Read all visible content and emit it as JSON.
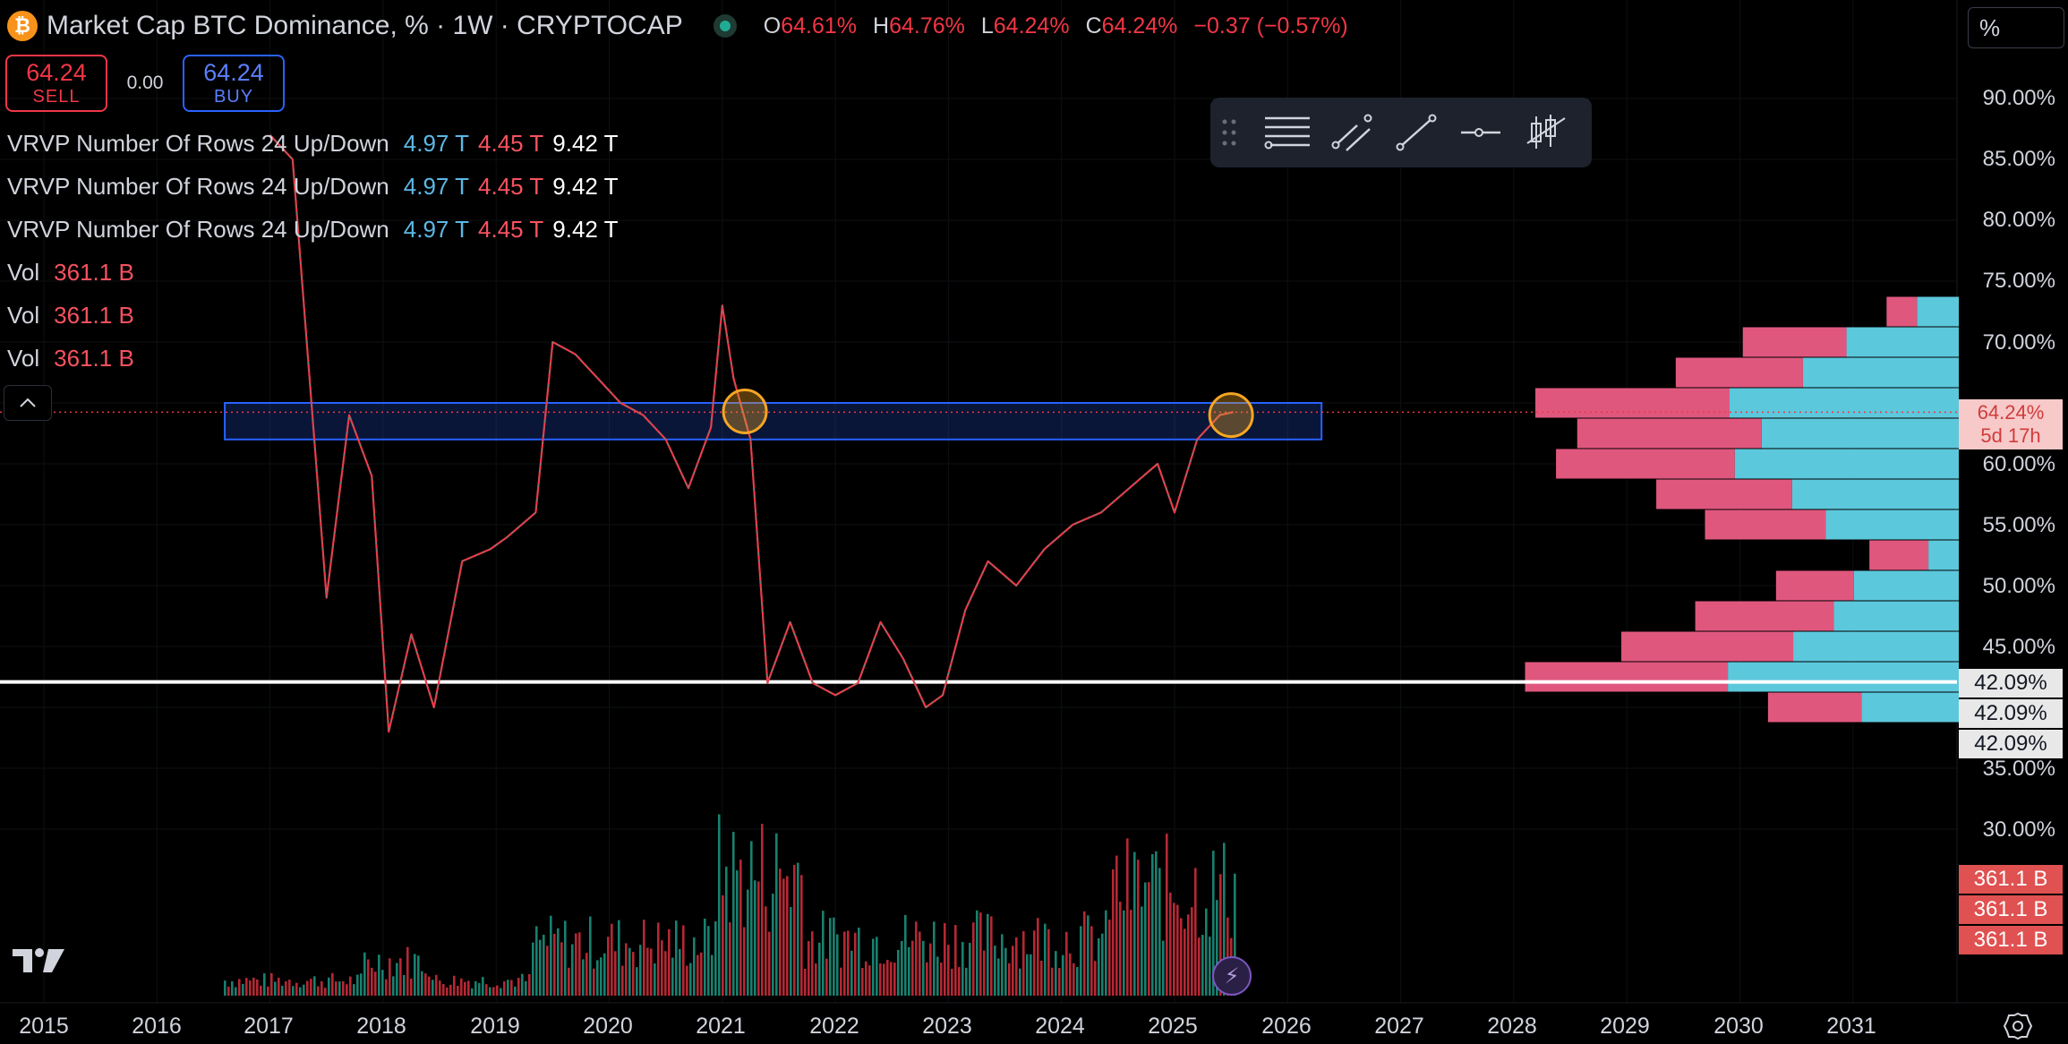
{
  "header": {
    "title": "Market Cap BTC Dominance, % · 1W · CRYPTOCAP",
    "ohlc": [
      {
        "k": "O",
        "v": "64.61%"
      },
      {
        "k": "H",
        "v": "64.76%"
      },
      {
        "k": "L",
        "v": "64.24%"
      },
      {
        "k": "C",
        "v": "64.24%"
      }
    ],
    "change": "−0.37 (−0.57%)"
  },
  "trade": {
    "sell_price": "64.24",
    "sell_label": "SELL",
    "spread": "0.00",
    "buy_price": "64.24",
    "buy_label": "BUY"
  },
  "legend": {
    "vrvp": [
      {
        "name": "VRVP Number Of Rows 24 Up/Down",
        "up": "4.97 T",
        "down": "4.45 T",
        "total": "9.42 T"
      },
      {
        "name": "VRVP Number Of Rows 24 Up/Down",
        "up": "4.97 T",
        "down": "4.45 T",
        "total": "9.42 T"
      },
      {
        "name": "VRVP Number Of Rows 24 Up/Down",
        "up": "4.97 T",
        "down": "4.45 T",
        "total": "9.42 T"
      }
    ],
    "vol": [
      {
        "name": "Vol",
        "value": "361.1 B"
      },
      {
        "name": "Vol",
        "value": "361.1 B"
      },
      {
        "name": "Vol",
        "value": "361.1 B"
      }
    ]
  },
  "axis": {
    "unit_button": "%",
    "price_ticks": [
      "90.00%",
      "85.00%",
      "80.00%",
      "75.00%",
      "70.00%",
      "60.00%",
      "55.00%",
      "50.00%",
      "45.00%",
      "35.00%",
      "30.00%"
    ],
    "current_price": "64.24%",
    "countdown": "5d 17h",
    "horizontal_line_labels": [
      "42.09%",
      "42.09%",
      "42.09%"
    ],
    "volume_labels": [
      "361.1 B",
      "361.1 B",
      "361.1 B"
    ],
    "time_ticks": [
      "2015",
      "2016",
      "2017",
      "2018",
      "2019",
      "2020",
      "2021",
      "2022",
      "2023",
      "2024",
      "2025",
      "2026",
      "2027",
      "2028",
      "2029",
      "2030",
      "2031"
    ]
  },
  "colors": {
    "up": "#22ab94",
    "down": "#f23645",
    "vp_up": "#5cc8dc",
    "vp_down": "#e0577e",
    "zone": "#2962ff",
    "highlight": "#f5a623"
  },
  "chart_data": {
    "type": "line",
    "title": "Market Cap BTC Dominance, % · 1W · CRYPTOCAP",
    "ylim": [
      20,
      94
    ],
    "x": [
      2017.0,
      2017.2,
      2017.35,
      2017.5,
      2017.7,
      2017.9,
      2018.05,
      2018.25,
      2018.45,
      2018.7,
      2018.95,
      2019.1,
      2019.35,
      2019.5,
      2019.7,
      2019.9,
      2020.1,
      2020.3,
      2020.5,
      2020.7,
      2020.9,
      2021.0,
      2021.1,
      2021.25,
      2021.4,
      2021.6,
      2021.8,
      2022.0,
      2022.2,
      2022.4,
      2022.6,
      2022.8,
      2022.95,
      2023.15,
      2023.35,
      2023.6,
      2023.85,
      2024.1,
      2024.35,
      2024.6,
      2024.85,
      2025.0,
      2025.2,
      2025.4,
      2025.52
    ],
    "series": [
      {
        "values": [
          87,
          85,
          67,
          49,
          64,
          59,
          38,
          46,
          40,
          52,
          53,
          54,
          56,
          70,
          69,
          67,
          65,
          64,
          62,
          58,
          63,
          73,
          67,
          62,
          42,
          47,
          42,
          41,
          42,
          47,
          44,
          40,
          41,
          48,
          52,
          50,
          53,
          55,
          56,
          58,
          60,
          56,
          62,
          64,
          64.24
        ]
      }
    ],
    "volume_profile": {
      "levels": [
        72.5,
        70,
        67.5,
        65,
        62.5,
        60,
        57.5,
        55,
        52.5,
        50,
        47.5,
        45,
        42.5,
        40
      ],
      "up": [
        0.73,
        1.96,
        2.72,
        4.0,
        3.44,
        3.91,
        2.91,
        2.32,
        0.53,
        1.83,
        2.18,
        2.89,
        4.03,
        1.7
      ],
      "down": [
        0.53,
        1.81,
        2.22,
        3.39,
        3.22,
        3.12,
        2.37,
        2.11,
        1.03,
        1.36,
        2.42,
        3.0,
        3.54,
        1.63
      ]
    },
    "zone": {
      "y_top": 65,
      "y_bottom": 62,
      "x_start": 2016.6,
      "x_end": 2026.3
    },
    "horizontal_line": 42.09,
    "circles": [
      {
        "x": 2021.2,
        "y": 64.3
      },
      {
        "x": 2025.5,
        "y": 64.0
      }
    ]
  }
}
